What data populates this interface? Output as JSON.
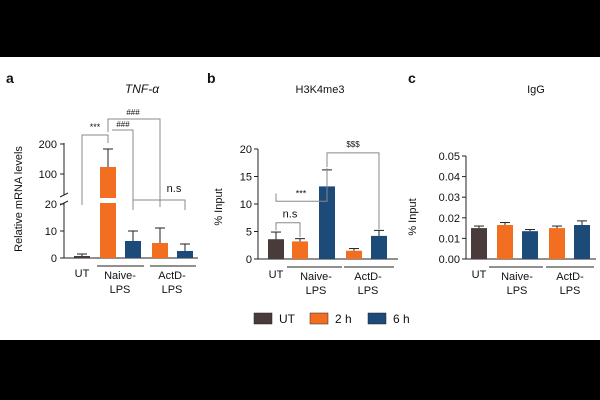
{
  "colors": {
    "UT": "#4a3b3b",
    "h2": "#f26f21",
    "h6": "#1c4a79",
    "ink": "#222222"
  },
  "legend": [
    {
      "key": "UT",
      "label": "UT",
      "color": "#4a3b3b"
    },
    {
      "key": "h2",
      "label": "2 h",
      "color": "#f26f21"
    },
    {
      "key": "h6",
      "label": "6 h",
      "color": "#1c4a79"
    }
  ],
  "chart_data": [
    {
      "panel": "a",
      "type": "bar",
      "title": "TNF-α",
      "ylabel": "Relative mRNA levels",
      "axis_break": true,
      "ylim_lower": [
        0,
        20
      ],
      "ylim_upper": [
        20,
        200
      ],
      "yticks_lower": [
        "0",
        "10",
        "20"
      ],
      "yticks_upper": [
        "100",
        "200"
      ],
      "groups": [
        {
          "label": "UT",
          "line2": "",
          "bars": [
            {
              "series": "UT",
              "value": 0.8,
              "err": 0.6
            }
          ]
        },
        {
          "label": "Naive-",
          "line2": "LPS",
          "bars": [
            {
              "series": "2 h",
              "value": 120,
              "err": 60
            },
            {
              "series": "6 h",
              "value": 6.5,
              "err": 3.5
            }
          ]
        },
        {
          "label": "ActD-",
          "line2": "LPS",
          "bars": [
            {
              "series": "2 h",
              "value": 5.5,
              "err": 5.5
            },
            {
              "series": "6 h",
              "value": 2.5,
              "err": 2.5
            }
          ]
        }
      ],
      "annotations": [
        "***",
        "###",
        "###",
        "n.s"
      ]
    },
    {
      "panel": "b",
      "type": "bar",
      "title": "H3K4me3",
      "ylabel": "% Input",
      "ylim": [
        0,
        20
      ],
      "yticks": [
        "0",
        "5",
        "10",
        "15",
        "20"
      ],
      "groups": [
        {
          "label": "UT",
          "line2": "",
          "bars": [
            {
              "series": "UT",
              "value": 3.6,
              "err": 1.3
            }
          ]
        },
        {
          "label": "Naive-",
          "line2": "LPS",
          "bars": [
            {
              "series": "2 h",
              "value": 3.2,
              "err": 0.5
            },
            {
              "series": "6 h",
              "value": 13.2,
              "err": 3.0
            }
          ]
        },
        {
          "label": "ActD-",
          "line2": "LPS",
          "bars": [
            {
              "series": "2 h",
              "value": 1.5,
              "err": 0.4
            },
            {
              "series": "6 h",
              "value": 4.2,
              "err": 1.0
            }
          ]
        }
      ],
      "annotations": [
        "***",
        "n.s",
        "$$$"
      ]
    },
    {
      "panel": "c",
      "type": "bar",
      "title": "IgG",
      "ylabel": "% Input",
      "ylim": [
        0,
        0.05
      ],
      "yticks": [
        "0.00",
        "0.01",
        "0.02",
        "0.03",
        "0.04",
        "0.05"
      ],
      "groups": [
        {
          "label": "UT",
          "line2": "",
          "bars": [
            {
              "series": "UT",
              "value": 0.015,
              "err": 0.001
            }
          ]
        },
        {
          "label": "Naive-",
          "line2": "LPS",
          "bars": [
            {
              "series": "2 h",
              "value": 0.0165,
              "err": 0.0012
            },
            {
              "series": "6 h",
              "value": 0.0135,
              "err": 0.0008
            }
          ]
        },
        {
          "label": "ActD-",
          "line2": "LPS",
          "bars": [
            {
              "series": "2 h",
              "value": 0.015,
              "err": 0.001
            },
            {
              "series": "6 h",
              "value": 0.0165,
              "err": 0.002
            }
          ]
        }
      ]
    }
  ]
}
